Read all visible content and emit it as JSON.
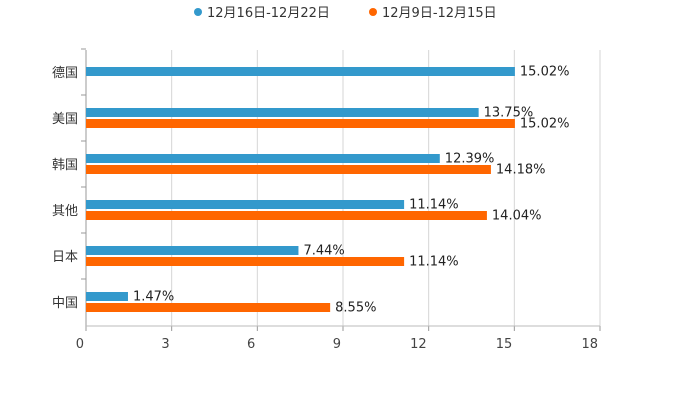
{
  "chart_data": {
    "type": "bar",
    "orientation": "horizontal",
    "categories": [
      "德国",
      "美国",
      "韩国",
      "其他",
      "日本",
      "中国"
    ],
    "series": [
      {
        "name": "12月16日-12月22日",
        "color": "#3399cc",
        "values": [
          15.02,
          13.75,
          12.39,
          11.14,
          7.44,
          1.47
        ],
        "labels": [
          "15.02%",
          "13.75%",
          "12.39%",
          "11.14%",
          "7.44%",
          "1.47%"
        ]
      },
      {
        "name": "12月9日-12月15日",
        "color": "#ff6600",
        "values": [
          null,
          15.02,
          14.18,
          14.04,
          11.14,
          8.55
        ],
        "labels": [
          null,
          "15.02%",
          "14.18%",
          "14.04%",
          "11.14%",
          "8.55%"
        ]
      }
    ],
    "xlim": [
      0,
      18
    ],
    "xticks": [
      "0",
      "3",
      "6",
      "9",
      "12",
      "15",
      "18"
    ],
    "grid": true,
    "legend": "top-center",
    "title": "",
    "xlabel": "",
    "ylabel": ""
  }
}
